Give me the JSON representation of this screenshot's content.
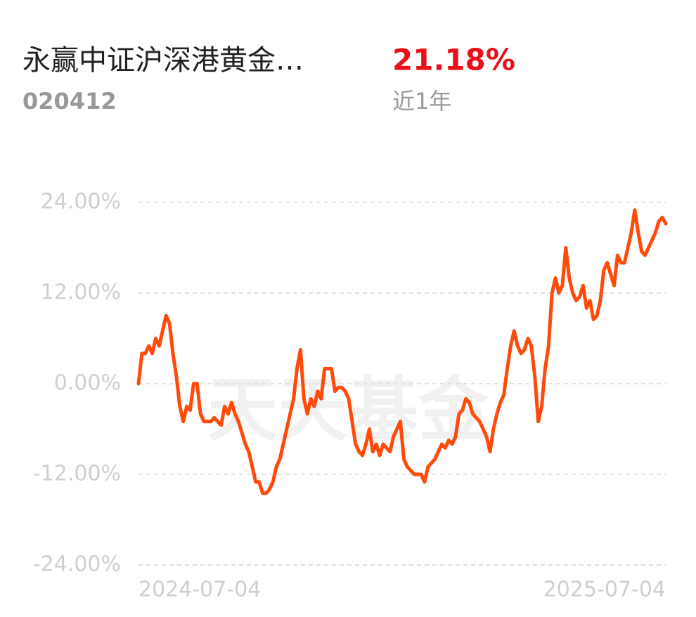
{
  "header": {
    "title": "永赢中证沪深港黄金…",
    "code": "020412",
    "return": "21.18%",
    "period": "近1年"
  },
  "chart_data": {
    "type": "line",
    "watermark": "天天基金",
    "categories": [
      "2024-07-04",
      null,
      null,
      null,
      null,
      null,
      null,
      null,
      null,
      null,
      null,
      null,
      null,
      null,
      null,
      null,
      null,
      null,
      null,
      null,
      null,
      null,
      null,
      null,
      null,
      null,
      null,
      null,
      null,
      null,
      null,
      null,
      null,
      null,
      null,
      null,
      null,
      null,
      null,
      null,
      null,
      null,
      null,
      null,
      null,
      null,
      null,
      null,
      null,
      null,
      null,
      null,
      null,
      null,
      null,
      null,
      null,
      null,
      null,
      null,
      null,
      null,
      null,
      null,
      null,
      null,
      null,
      null,
      null,
      null,
      null,
      null,
      null,
      null,
      null,
      null,
      null,
      null,
      null,
      null,
      null,
      null,
      null,
      null,
      null,
      null,
      null,
      null,
      null,
      null,
      null,
      null,
      null,
      null,
      null,
      null,
      null,
      null,
      null,
      null,
      null,
      null,
      null,
      null,
      null,
      null,
      null,
      null,
      null,
      null,
      null,
      null,
      null,
      null,
      null,
      null,
      null,
      null,
      null,
      null,
      null,
      null,
      null,
      null,
      null,
      null,
      null,
      null,
      null,
      null,
      null,
      null,
      null,
      null,
      null,
      null,
      null,
      null,
      null,
      null,
      null,
      null,
      null,
      null,
      null,
      null,
      null,
      null,
      null,
      null,
      null,
      null,
      null,
      "2025-07-04"
    ],
    "series": [
      {
        "color": "#ff4a0a",
        "values": [
          0,
          4,
          4,
          5,
          4,
          6,
          5,
          7,
          9,
          8,
          4,
          1,
          -3,
          -5,
          -3,
          -3.5,
          0,
          0,
          -4,
          -5,
          -5,
          -5,
          -4.5,
          -5,
          -5.5,
          -3,
          -4,
          -2.5,
          -4,
          -5,
          -6.5,
          -8,
          -9,
          -11,
          -13,
          -13,
          -14.5,
          -14.5,
          -14,
          -13,
          -11,
          -10,
          -8,
          -6,
          -4,
          -2,
          2,
          4.5,
          -2,
          -4,
          -2,
          -3,
          -1,
          -2,
          2,
          2,
          2,
          -1,
          -0.5,
          -0.5,
          -1,
          -2,
          -5,
          -8,
          -9,
          -9.5,
          -8,
          -6,
          -9,
          -8,
          -9.5,
          -8,
          -8.5,
          -9,
          -7,
          -6,
          -5,
          -10,
          -11,
          -11.5,
          -12,
          -12,
          -12,
          -13,
          -11,
          -10.5,
          -10,
          -9,
          -8,
          -8.5,
          -7.5,
          -8,
          -7,
          -4,
          -3.5,
          -2,
          -2.5,
          -4,
          -4.5,
          -5,
          -6,
          -7,
          -9,
          -6,
          -4,
          -2.5,
          -1.5,
          2,
          5,
          7,
          5,
          4,
          4.5,
          6,
          5,
          1,
          -5,
          -3,
          2,
          5,
          12,
          14,
          12,
          13,
          18,
          14,
          12,
          11,
          11.5,
          13,
          10,
          11,
          8.5,
          9,
          11,
          15,
          16,
          14.5,
          13,
          17,
          16,
          16,
          18,
          20,
          23,
          20,
          17.5,
          17,
          18,
          19,
          20,
          21.5,
          22,
          21.18
        ]
      }
    ],
    "ylim": [
      -24,
      24
    ],
    "yticks": [
      {
        "value": -24,
        "label": "-24.00%"
      },
      {
        "value": -12,
        "label": "-12.00%"
      },
      {
        "value": 0,
        "label": "0.00%"
      },
      {
        "value": 12,
        "label": "12.00%"
      },
      {
        "value": 24,
        "label": "24.00%"
      }
    ],
    "grid": true
  }
}
